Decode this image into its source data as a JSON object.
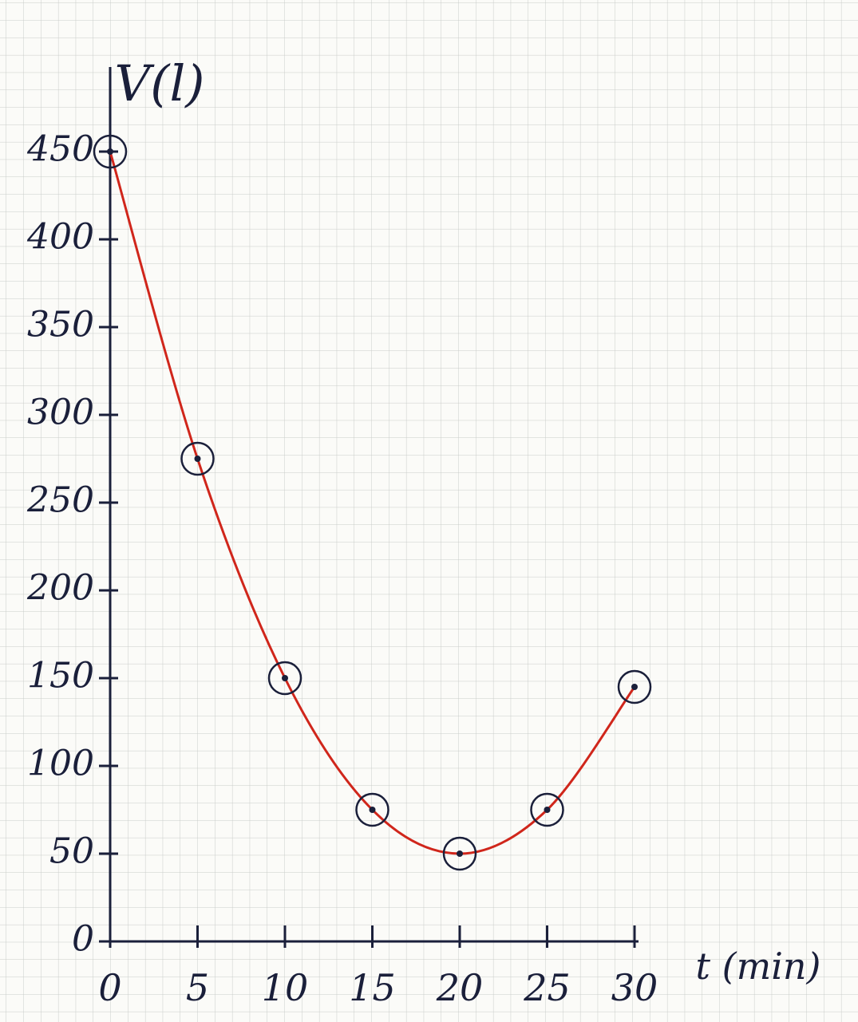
{
  "chart_data": {
    "type": "line",
    "y_label": "V(l)",
    "x_label": "t (min)",
    "x": [
      0,
      5,
      10,
      15,
      20,
      25,
      30
    ],
    "series": [
      {
        "color": "#d0261b",
        "marker_color": "#1a1f3a",
        "values": [
          450,
          275,
          150,
          75,
          50,
          75,
          145
        ]
      }
    ],
    "xlim": [
      0,
      30
    ],
    "xticks": [
      0,
      5,
      10,
      15,
      20,
      25,
      30
    ],
    "ylim": [
      0,
      480
    ],
    "yticks": [
      0,
      50,
      100,
      150,
      200,
      250,
      300,
      350,
      400,
      450
    ],
    "grid": true
  }
}
